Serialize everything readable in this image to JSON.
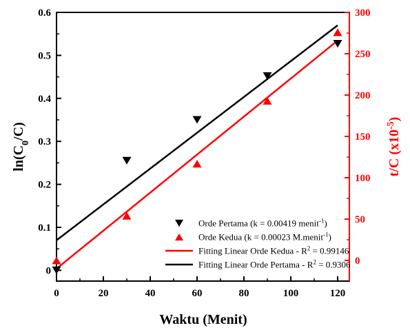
{
  "chart_data": {
    "type": "scatter",
    "xlabel": "Waktu (Menit)",
    "ylabel_left": {
      "main": "ln(C",
      "sub": "0",
      "end": "/C)"
    },
    "ylabel_right": {
      "main": "t/C (x10",
      "sup": "-5",
      "end": ")"
    },
    "xlim": [
      0,
      125
    ],
    "ylim_left": [
      -0.025,
      0.6
    ],
    "ylim_right": [
      -25,
      300
    ],
    "x_ticks": [
      "0",
      "20",
      "40",
      "60",
      "80",
      "100",
      "120"
    ],
    "y_left_ticks": [
      "0",
      "0.1",
      "0.2",
      "0.3",
      "0.4",
      "0.5",
      "0.6"
    ],
    "y_right_ticks": [
      "0",
      "50",
      "100",
      "150",
      "200",
      "250",
      "300"
    ],
    "colors": {
      "black": "#000000",
      "red": "#ff0000"
    },
    "series": [
      {
        "name": "Orde Pertama",
        "axis": "left",
        "marker": "triangle-down",
        "color": "#000000",
        "x": [
          0,
          30,
          60,
          90,
          120
        ],
        "y": [
          0.0,
          0.255,
          0.35,
          0.452,
          0.527
        ]
      },
      {
        "name": "Orde Kedua",
        "axis": "right",
        "marker": "triangle-up",
        "color": "#ff0000",
        "x": [
          0,
          30,
          60,
          90,
          120
        ],
        "y": [
          0,
          54,
          117,
          193,
          276
        ]
      }
    ],
    "fits": [
      {
        "name": "Fitting Linear Orde Kedua",
        "axis": "right",
        "color": "#ff0000",
        "x": [
          0,
          120
        ],
        "y": [
          -10,
          266
        ]
      },
      {
        "name": "Fitting Linear Orde Pertama",
        "axis": "left",
        "color": "#000000",
        "x": [
          0,
          120
        ],
        "y": [
          0.07,
          0.57
        ]
      }
    ],
    "legend": {
      "placement": "bottom-right",
      "entries": [
        {
          "marker": "triangle-down",
          "color": "#000000",
          "text": "Orde Pertama (k = 0.00419 menit",
          "sup": "-1",
          "end": ")"
        },
        {
          "marker": "triangle-up",
          "color": "#ff0000",
          "text": "Orde Kedua (k = 0.00023 M.menit",
          "sup": "-1",
          "end": ")"
        },
        {
          "marker": "line",
          "color": "#ff0000",
          "text": "Fitting Linear Orde Kedua - R",
          "sup": "2",
          "end": " = 0.99146"
        },
        {
          "marker": "line",
          "color": "#000000",
          "text": "Fitting Linear Orde Pertama - R",
          "sup": "2",
          "end": " = 0.9306"
        }
      ]
    }
  }
}
